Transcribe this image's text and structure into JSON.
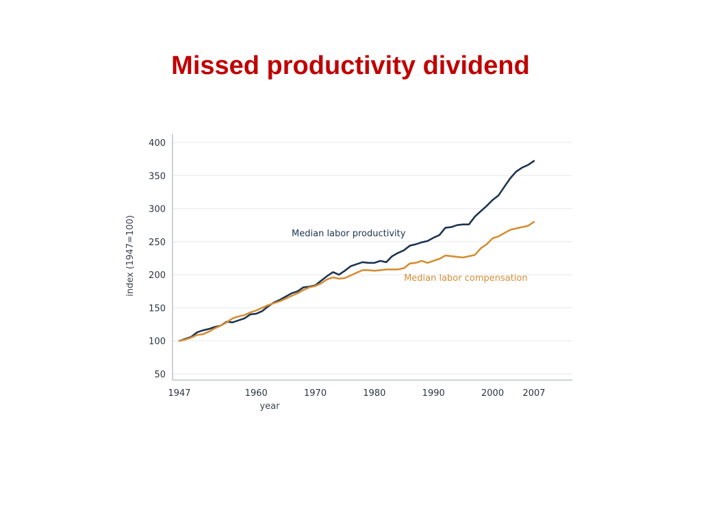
{
  "slide": {
    "title": "Missed productivity dividend",
    "title_color": "#c00000"
  },
  "chart_data": {
    "type": "line",
    "xlabel": "year",
    "ylabel": "index (1947=100)",
    "xlim": [
      1947,
      2013
    ],
    "ylim": [
      40,
      405
    ],
    "x_ticks": [
      1947,
      1960,
      1970,
      1980,
      1990,
      2000,
      2007
    ],
    "y_ticks": [
      50,
      100,
      150,
      200,
      250,
      300,
      350,
      400
    ],
    "grid": "horizontal",
    "legend": "inline labels",
    "series": [
      {
        "name": "Median labor productivity",
        "color": "#1c3450",
        "label_anchor": [
          1966,
          258
        ],
        "points": [
          [
            1947,
            100
          ],
          [
            1948,
            103
          ],
          [
            1949,
            106
          ],
          [
            1950,
            113
          ],
          [
            1951,
            116
          ],
          [
            1952,
            118
          ],
          [
            1953,
            121
          ],
          [
            1954,
            123
          ],
          [
            1955,
            129
          ],
          [
            1956,
            128
          ],
          [
            1957,
            131
          ],
          [
            1958,
            134
          ],
          [
            1959,
            140
          ],
          [
            1960,
            141
          ],
          [
            1961,
            145
          ],
          [
            1962,
            152
          ],
          [
            1963,
            158
          ],
          [
            1964,
            162
          ],
          [
            1965,
            167
          ],
          [
            1966,
            172
          ],
          [
            1967,
            175
          ],
          [
            1968,
            181
          ],
          [
            1969,
            182
          ],
          [
            1970,
            184
          ],
          [
            1971,
            191
          ],
          [
            1972,
            198
          ],
          [
            1973,
            204
          ],
          [
            1974,
            200
          ],
          [
            1975,
            206
          ],
          [
            1976,
            213
          ],
          [
            1977,
            216
          ],
          [
            1978,
            219
          ],
          [
            1979,
            218
          ],
          [
            1980,
            218
          ],
          [
            1981,
            221
          ],
          [
            1982,
            219
          ],
          [
            1983,
            228
          ],
          [
            1984,
            233
          ],
          [
            1985,
            237
          ],
          [
            1986,
            244
          ],
          [
            1987,
            246
          ],
          [
            1988,
            249
          ],
          [
            1989,
            251
          ],
          [
            1990,
            256
          ],
          [
            1991,
            260
          ],
          [
            1992,
            271
          ],
          [
            1993,
            272
          ],
          [
            1994,
            275
          ],
          [
            1995,
            276
          ],
          [
            1996,
            276
          ],
          [
            1997,
            288
          ],
          [
            1998,
            296
          ],
          [
            1999,
            304
          ],
          [
            2000,
            313
          ],
          [
            2001,
            320
          ],
          [
            2002,
            333
          ],
          [
            2003,
            346
          ],
          [
            2004,
            356
          ],
          [
            2005,
            362
          ],
          [
            2006,
            366
          ],
          [
            2007,
            372
          ]
        ]
      },
      {
        "name": "Median labor compensation",
        "color": "#d48d34",
        "label_anchor": [
          1985,
          191
        ],
        "points": [
          [
            1947,
            100
          ],
          [
            1948,
            102
          ],
          [
            1949,
            105
          ],
          [
            1950,
            109
          ],
          [
            1951,
            110
          ],
          [
            1952,
            114
          ],
          [
            1953,
            119
          ],
          [
            1954,
            123
          ],
          [
            1955,
            128
          ],
          [
            1956,
            134
          ],
          [
            1957,
            137
          ],
          [
            1958,
            139
          ],
          [
            1959,
            143
          ],
          [
            1960,
            146
          ],
          [
            1961,
            150
          ],
          [
            1962,
            154
          ],
          [
            1963,
            157
          ],
          [
            1964,
            160
          ],
          [
            1965,
            164
          ],
          [
            1966,
            168
          ],
          [
            1967,
            172
          ],
          [
            1968,
            177
          ],
          [
            1969,
            181
          ],
          [
            1970,
            183
          ],
          [
            1971,
            187
          ],
          [
            1972,
            193
          ],
          [
            1973,
            196
          ],
          [
            1974,
            194
          ],
          [
            1975,
            195
          ],
          [
            1976,
            199
          ],
          [
            1977,
            203
          ],
          [
            1978,
            207
          ],
          [
            1979,
            207
          ],
          [
            1980,
            206
          ],
          [
            1981,
            207
          ],
          [
            1982,
            208
          ],
          [
            1983,
            208
          ],
          [
            1984,
            208
          ],
          [
            1985,
            210
          ],
          [
            1986,
            217
          ],
          [
            1987,
            218
          ],
          [
            1988,
            221
          ],
          [
            1989,
            218
          ],
          [
            1990,
            221
          ],
          [
            1991,
            224
          ],
          [
            1992,
            229
          ],
          [
            1993,
            228
          ],
          [
            1994,
            227
          ],
          [
            1995,
            226
          ],
          [
            1996,
            228
          ],
          [
            1997,
            230
          ],
          [
            1998,
            240
          ],
          [
            1999,
            246
          ],
          [
            2000,
            255
          ],
          [
            2001,
            258
          ],
          [
            2002,
            263
          ],
          [
            2003,
            268
          ],
          [
            2004,
            270
          ],
          [
            2005,
            272
          ],
          [
            2006,
            274
          ],
          [
            2007,
            280
          ]
        ]
      }
    ]
  }
}
